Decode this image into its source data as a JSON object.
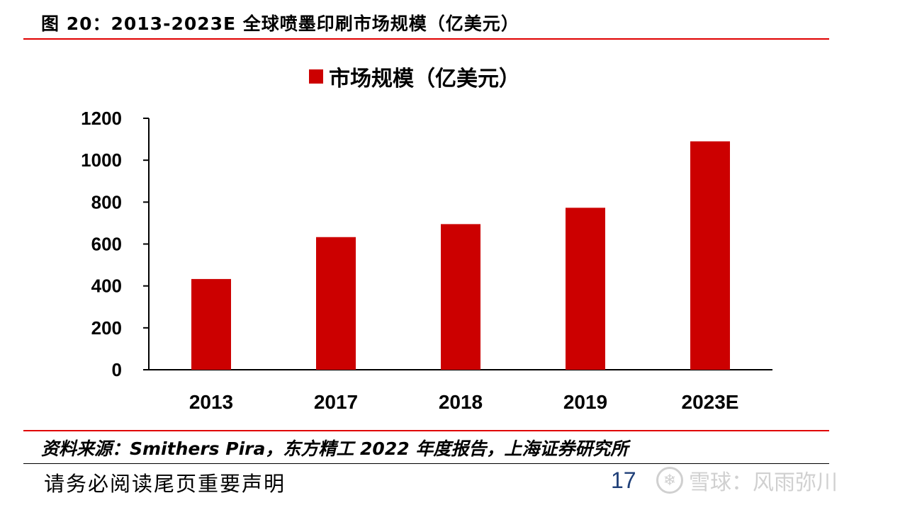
{
  "figure_title": "图 20：2013-2023E 全球喷墨印刷市场规模（亿美元）",
  "chart_data": {
    "type": "bar",
    "categories": [
      "2013",
      "2017",
      "2018",
      "2019",
      "2023E"
    ],
    "series": [
      {
        "name": "市场规模（亿美元）",
        "values": [
          433,
          633,
          695,
          773,
          1090
        ],
        "color": "#cc0000"
      }
    ],
    "ylim": [
      0,
      1200
    ],
    "yticks": [
      "0",
      "200",
      "400",
      "600",
      "800",
      "1000",
      "1200"
    ],
    "legend_position": "top-center",
    "grid": false
  },
  "source_note": "资料来源：Smithers Pira，东方精工 2022 年度报告，上海证券研究所",
  "footer": {
    "disclaimer": "请务必阅读尾页重要声明",
    "page_number": "17"
  },
  "watermark": {
    "icon": "snowball-logo-icon",
    "text": "雪球：风雨弥川"
  }
}
